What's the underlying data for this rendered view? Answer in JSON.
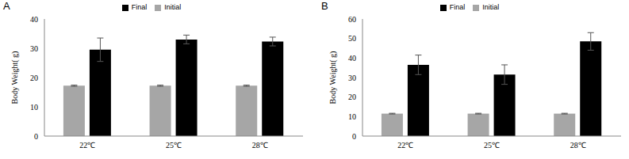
{
  "chart_data": [
    {
      "type": "bar",
      "title": "A",
      "y_label": "Body Weight( g)",
      "categories": [
        "22℃",
        "25℃",
        "28℃"
      ],
      "series": [
        {
          "name": "Initial",
          "color": "#a6a6a6",
          "values": [
            17.2,
            17.2,
            17.2
          ],
          "errors": [
            0.2,
            0.2,
            0.2
          ]
        },
        {
          "name": "Final",
          "color": "#000000",
          "values": [
            29.5,
            33,
            32.3
          ],
          "errors": [
            4,
            1.5,
            1.5
          ]
        }
      ],
      "ylim": [
        0,
        40
      ],
      "yticks": [
        0,
        10,
        20,
        30,
        40
      ],
      "legend": "top"
    },
    {
      "type": "bar",
      "title": "B",
      "y_label": "Body Weight( g)",
      "categories": [
        "22℃",
        "25℃",
        "28℃"
      ],
      "series": [
        {
          "name": "Initial",
          "color": "#a6a6a6",
          "values": [
            11.5,
            11.5,
            11.5
          ],
          "errors": [
            0.2,
            0.2,
            0.2
          ]
        },
        {
          "name": "Final",
          "color": "#000000",
          "values": [
            36.5,
            31.5,
            48.5
          ],
          "errors": [
            5,
            5,
            4.5
          ]
        }
      ],
      "ylim": [
        0,
        60
      ],
      "yticks": [
        0,
        10,
        20,
        30,
        40,
        50,
        60
      ],
      "legend": "top"
    }
  ]
}
